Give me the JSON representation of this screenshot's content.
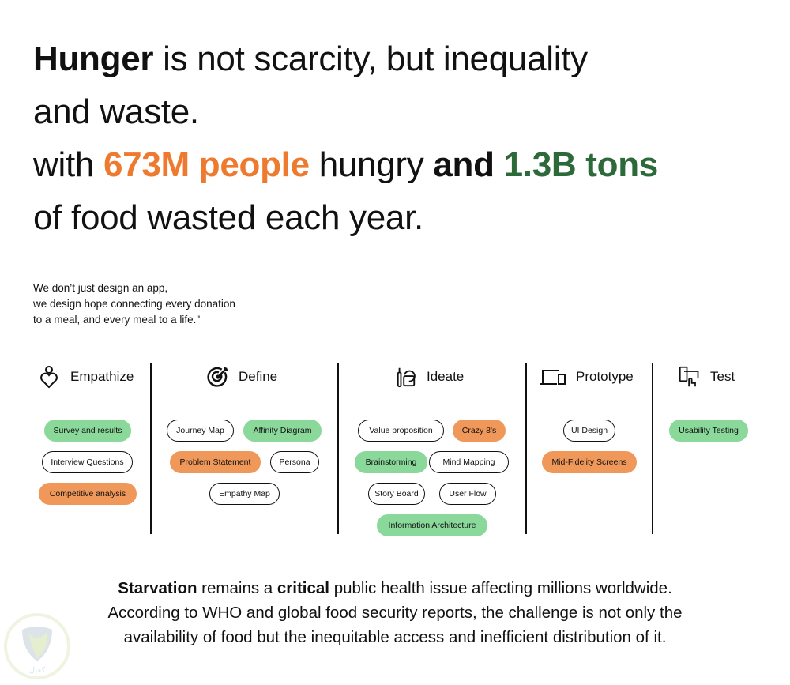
{
  "headline": {
    "w1": "Hunger",
    "w2": " is not scarcity, but inequality",
    "w3": "and waste.",
    "w4": "with ",
    "w5": "673M people",
    "w6": " hungry ",
    "w7": "and",
    "w8": " ",
    "w9": "1.3B tons",
    "w10": "of food wasted each year."
  },
  "quote": {
    "line1": "We don’t just design an app,",
    "line2": "we design hope connecting every donation",
    "line3": "to a meal, and every meal to a life.\""
  },
  "colors": {
    "orange": "#ee7a2f",
    "dark_green": "#2d6a3a",
    "pill_green": "#8ad89a",
    "pill_orange": "#f0985a"
  },
  "phases": [
    {
      "title": "Empathize",
      "icon": "person-heart-icon",
      "items": [
        {
          "label": "Survey and results",
          "style": "green"
        },
        {
          "label": "Interview Questions",
          "style": "outline"
        },
        {
          "label": "Competitive analysis",
          "style": "orange"
        }
      ]
    },
    {
      "title": "Define",
      "icon": "target-icon",
      "items": [
        {
          "label": "Journey Map",
          "style": "outline"
        },
        {
          "label": "Affinity Diagram",
          "style": "green"
        },
        {
          "label": "Problem Statement",
          "style": "orange"
        },
        {
          "label": "Persona",
          "style": "outline"
        },
        {
          "label": "Empathy Map",
          "style": "outline"
        }
      ]
    },
    {
      "title": "Ideate",
      "icon": "brush-shapes-icon",
      "items": [
        {
          "label": "Value proposition",
          "style": "outline"
        },
        {
          "label": "Crazy 8's",
          "style": "orange"
        },
        {
          "label": "Brainstorming",
          "style": "green"
        },
        {
          "label": "Mind Mapping",
          "style": "outline"
        },
        {
          "label": "Story Board",
          "style": "outline"
        },
        {
          "label": "User Flow",
          "style": "outline"
        },
        {
          "label": "Information Architecture",
          "style": "green"
        }
      ]
    },
    {
      "title": "Prototype",
      "icon": "devices-icon",
      "items": [
        {
          "label": "UI Design",
          "style": "outline"
        },
        {
          "label": "Mid-Fidelity Screens",
          "style": "orange"
        }
      ]
    },
    {
      "title": "Test",
      "icon": "touch-devices-icon",
      "items": [
        {
          "label": "Usability Testing",
          "style": "green"
        }
      ]
    }
  ],
  "bottom": {
    "b1": "Starvation",
    "t1": " remains a ",
    "b2": "critical",
    "t2": " public health issue affecting millions worldwide.",
    "line2": "According to WHO and global food security reports, the challenge is not only the",
    "line3": "availability of food but the inequitable access and inefficient distribution of it."
  },
  "watermark": {
    "text": "كفيل"
  }
}
